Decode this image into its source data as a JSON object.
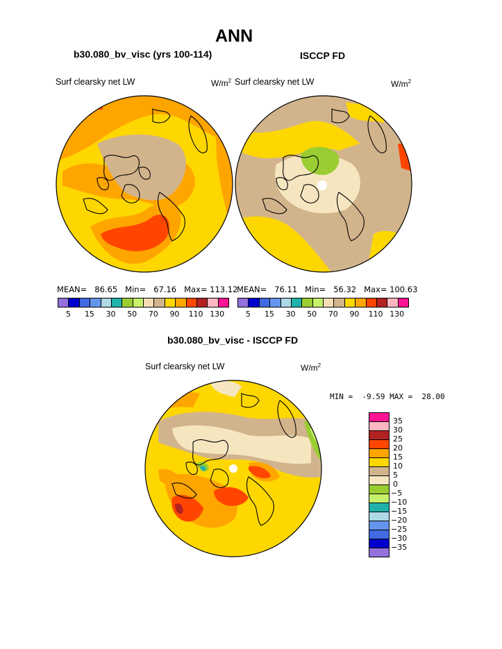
{
  "page": {
    "main_title": "ANN",
    "left_title": "b30.080_bv_visc (yrs 100-114)",
    "right_title": "ISCCP FD",
    "diff_title": "b30.080_bv_visc - ISCCP FD"
  },
  "panels": [
    {
      "name": "model",
      "field_label": "Surf clearsky net LW",
      "units_base": "W/m",
      "units_exp": "2",
      "stats": {
        "mean_label": "MEAN=",
        "mean": "86.65",
        "min_label": "Min=",
        "min": "67.16",
        "max_label": "Max=",
        "max": "113.12"
      }
    },
    {
      "name": "obs",
      "field_label": "Surf clearsky net LW",
      "units_base": "W/m",
      "units_exp": "2",
      "stats": {
        "mean_label": "MEAN=",
        "mean": "76.11",
        "min_label": "Min=",
        "min": "56.32",
        "max_label": "Max=",
        "max": "100.63"
      }
    },
    {
      "name": "diff",
      "field_label": "Surf clearsky net LW",
      "units_base": "W/m",
      "units_exp": "2",
      "stats": {
        "min_label": "MIN =",
        "min": "-9.59",
        "max_label": "MAX =",
        "max": "28.00"
      }
    }
  ],
  "colorbar_top": {
    "colors": [
      "#9370db",
      "#0000cd",
      "#4169e1",
      "#6495ed",
      "#add8e6",
      "#20b2aa",
      "#9acd32",
      "#c6ef6a",
      "#f5deb3",
      "#d2b48c",
      "#ffd700",
      "#ffa500",
      "#ff4500",
      "#b22222",
      "#ffb6c1",
      "#ff1493"
    ],
    "tick_labels": [
      "5",
      "15",
      "30",
      "50",
      "70",
      "90",
      "110",
      "130"
    ]
  },
  "colorbar_diff": {
    "colors_top_to_bottom": [
      "#ff1493",
      "#ffb6c1",
      "#b22222",
      "#ff4500",
      "#ffa500",
      "#ffd700",
      "#d2b48c",
      "#f5e6c0",
      "#9acd32",
      "#c6ef6a",
      "#20b2aa",
      "#add8e6",
      "#6495ed",
      "#4169e1",
      "#0000cd",
      "#9370db"
    ],
    "tick_labels": [
      "35",
      "30",
      "25",
      "20",
      "15",
      "10",
      "5",
      "0",
      "−5",
      "−10",
      "−15",
      "−20",
      "−25",
      "−30",
      "−35"
    ]
  },
  "map_colors": {
    "yellow": "#ffd700",
    "orange": "#ffa500",
    "red": "#ff4500",
    "darkred": "#b22222",
    "tan": "#d2b48c",
    "wheat": "#f5e6c0",
    "green": "#9acd32",
    "lightgreen": "#c6ef6a",
    "teal": "#20b2aa"
  }
}
